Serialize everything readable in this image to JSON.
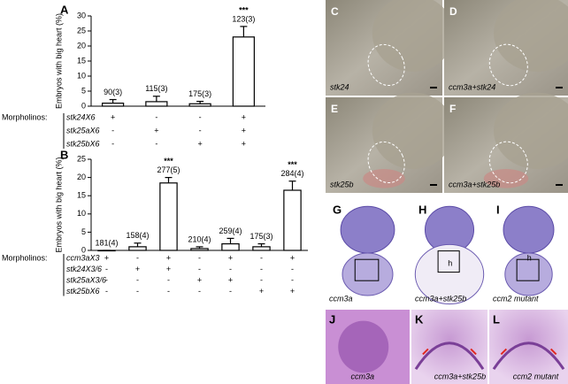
{
  "chart_data": [
    {
      "type": "bar",
      "panel": "A",
      "y_label": "Embryos with big heart (%)",
      "color": "#ffffff",
      "values": [
        1,
        1.5,
        0.8,
        23
      ],
      "errors": [
        1.2,
        1.8,
        0.8,
        3.5
      ],
      "n_labels": [
        "90(3)",
        "115(3)",
        "175(3)",
        "123(3)"
      ],
      "significance": [
        null,
        null,
        null,
        "***"
      ],
      "ylim": [
        0,
        30
      ],
      "yticks": [
        0,
        5,
        10,
        15,
        20,
        25,
        30
      ],
      "design_label": "Morpholinos:",
      "design": [
        {
          "name": "stk24X6",
          "signs": [
            "+",
            "-",
            "-",
            "+"
          ]
        },
        {
          "name": "stk25aX6",
          "signs": [
            "-",
            "+",
            "-",
            "+"
          ]
        },
        {
          "name": "stk25bX6",
          "signs": [
            "-",
            "-",
            "+",
            "+"
          ]
        }
      ]
    },
    {
      "type": "bar",
      "panel": "B",
      "y_label": "Embryos with big heart (%)",
      "color": "#ffffff",
      "values": [
        0,
        1,
        18.5,
        0.5,
        1.8,
        1,
        16.5
      ],
      "errors": [
        0,
        1,
        1.5,
        0.5,
        1.5,
        0.8,
        2.5
      ],
      "n_labels": [
        "181(4)",
        "158(4)",
        "277(5)",
        "210(4)",
        "259(4)",
        "175(3)",
        "284(4)"
      ],
      "significance": [
        null,
        null,
        "***",
        null,
        null,
        null,
        "***"
      ],
      "ylim": [
        0,
        25
      ],
      "yticks": [
        0,
        5,
        10,
        15,
        20,
        25
      ],
      "design_label": "Morpholinos:",
      "design": [
        {
          "name": "ccm3aX3",
          "signs": [
            "+",
            "-",
            "+",
            "-",
            "+",
            "-",
            "+"
          ]
        },
        {
          "name": "stk24X3/6",
          "signs": [
            "-",
            "+",
            "+",
            "-",
            "-",
            "-",
            "-"
          ]
        },
        {
          "name": "stk25aX3/6",
          "signs": [
            "-",
            "-",
            "-",
            "+",
            "+",
            "-",
            "-"
          ]
        },
        {
          "name": "stk25bX6",
          "signs": [
            "-",
            "-",
            "-",
            "-",
            "-",
            "+",
            "+"
          ]
        }
      ]
    }
  ],
  "panels": [
    {
      "label": "C",
      "caption": "stk24"
    },
    {
      "label": "D",
      "caption": "ccm3a+stk24"
    },
    {
      "label": "E",
      "caption": "stk25b"
    },
    {
      "label": "F",
      "caption": "ccm3a+stk25b"
    },
    {
      "label": "G",
      "caption": "ccm3a"
    },
    {
      "label": "H",
      "caption": "ccm3a+stk25b",
      "marker": "h"
    },
    {
      "label": "I",
      "caption": "ccm2 mutant",
      "marker": "h"
    },
    {
      "label": "J",
      "caption": "ccm3a"
    },
    {
      "label": "K",
      "caption": "ccm3a+stk25b"
    },
    {
      "label": "L",
      "caption": "ccm2 mutant"
    }
  ]
}
